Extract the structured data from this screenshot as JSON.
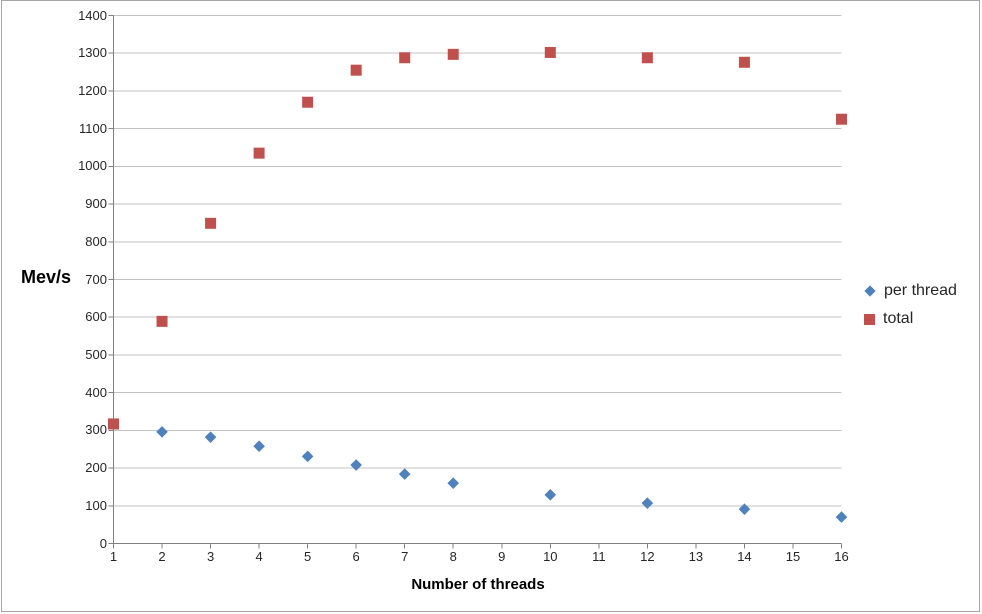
{
  "chart_data": {
    "type": "scatter",
    "title": "",
    "xlabel": "Number of threads",
    "ylabel": "Mev/s",
    "xlim": [
      1,
      16
    ],
    "ylim": [
      0,
      1400
    ],
    "xticks": [
      1,
      2,
      3,
      4,
      5,
      6,
      7,
      8,
      9,
      10,
      11,
      12,
      13,
      14,
      15,
      16
    ],
    "yticks": [
      0,
      100,
      200,
      300,
      400,
      500,
      600,
      700,
      800,
      900,
      1000,
      1100,
      1200,
      1300,
      1400
    ],
    "grid": "horizontal",
    "legend_position": "right",
    "series": [
      {
        "name": "per thread",
        "marker": "diamond",
        "color": "#4F81BD",
        "x": [
          1,
          2,
          3,
          4,
          5,
          6,
          7,
          8,
          10,
          12,
          14,
          16
        ],
        "y": [
          317,
          296,
          282,
          258,
          231,
          208,
          184,
          160,
          129,
          107,
          91,
          70
        ]
      },
      {
        "name": "total",
        "marker": "square",
        "color": "#C0504D",
        "x": [
          1,
          2,
          3,
          4,
          5,
          6,
          7,
          8,
          10,
          12,
          14,
          16
        ],
        "y": [
          317,
          589,
          849,
          1035,
          1170,
          1255,
          1288,
          1297,
          1302,
          1288,
          1276,
          1125
        ]
      }
    ]
  },
  "colors": {
    "gridline": "#C3C3C3",
    "axis": "#808080",
    "tick_text": "#262626",
    "background": "#FFFFFF",
    "border": "#A6A6A6"
  }
}
